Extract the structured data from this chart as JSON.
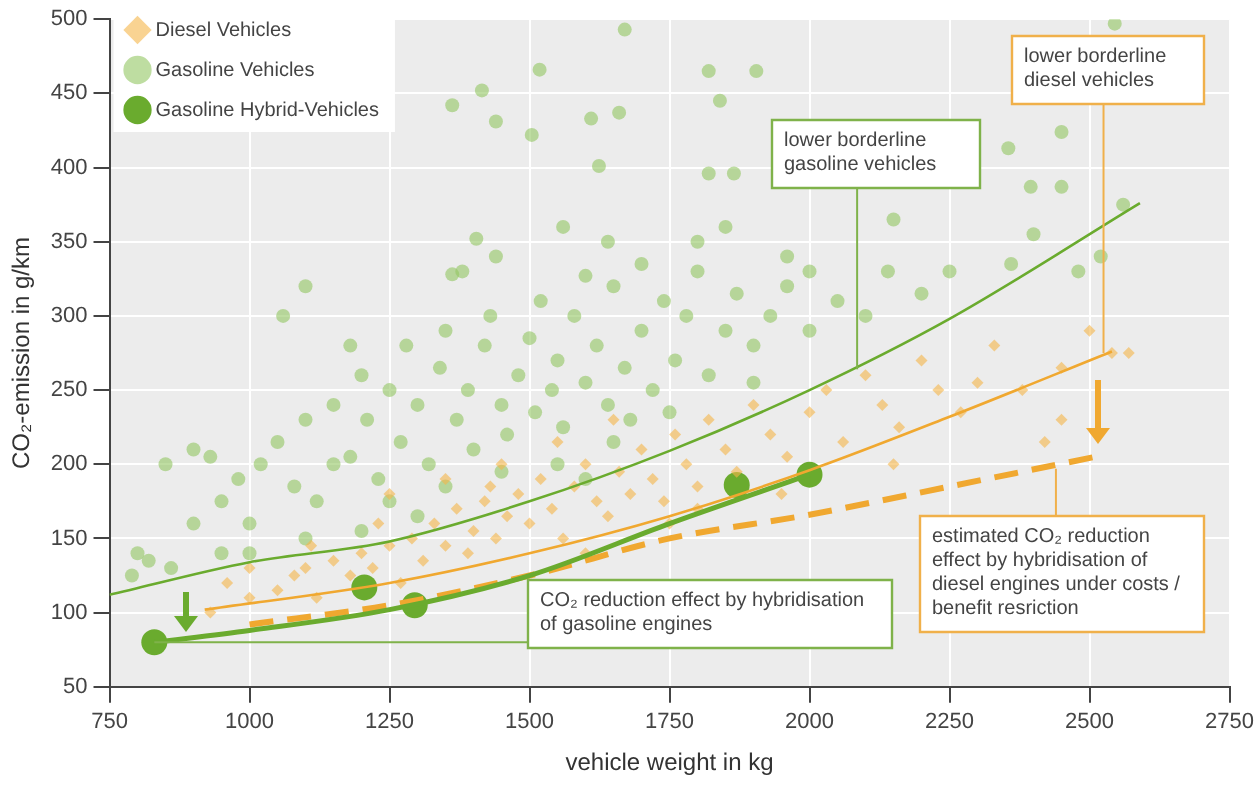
{
  "chart_data": {
    "type": "scatter",
    "xlabel": "vehicle weight in kg",
    "ylabel": "CO₂-emission in g/km",
    "xlim": [
      750,
      2750
    ],
    "xticks": [
      750,
      1000,
      1250,
      1500,
      1750,
      2000,
      2250,
      2500,
      2750
    ],
    "ylim": [
      50,
      500
    ],
    "yticks": [
      50,
      100,
      150,
      200,
      250,
      300,
      350,
      400,
      450,
      500
    ],
    "grid": true,
    "legend": "top left",
    "series": [
      {
        "name": "Diesel Vehicles",
        "type": "scatter",
        "marker": "diamond",
        "color": "#f5b54a",
        "x": [
          930,
          960,
          1000,
          1050,
          1080,
          1100,
          1120,
          1150,
          1180,
          1200,
          1220,
          1250,
          1270,
          1290,
          1310,
          1330,
          1350,
          1370,
          1390,
          1400,
          1420,
          1440,
          1460,
          1480,
          1500,
          1520,
          1540,
          1560,
          1580,
          1600,
          1620,
          1640,
          1660,
          1680,
          1700,
          1720,
          1740,
          1760,
          1780,
          1800,
          1820,
          1850,
          1870,
          1900,
          1930,
          1960,
          2000,
          2030,
          2060,
          2100,
          2130,
          2160,
          2200,
          2230,
          2270,
          2300,
          2330,
          2380,
          2420,
          2450,
          2500,
          2540,
          2570,
          1250,
          1350,
          1450,
          1550,
          1650,
          1000,
          1110,
          1230,
          1430,
          1750,
          1950,
          2150,
          2450,
          1600,
          1800
        ],
        "values": [
          100,
          120,
          110,
          115,
          125,
          130,
          110,
          135,
          125,
          140,
          130,
          145,
          120,
          150,
          135,
          160,
          145,
          170,
          140,
          155,
          175,
          150,
          165,
          180,
          160,
          190,
          170,
          150,
          185,
          200,
          175,
          165,
          195,
          180,
          210,
          190,
          175,
          220,
          200,
          185,
          230,
          210,
          195,
          240,
          220,
          205,
          235,
          250,
          215,
          260,
          240,
          225,
          270,
          250,
          235,
          255,
          280,
          250,
          215,
          265,
          290,
          275,
          275,
          180,
          190,
          200,
          215,
          230,
          130,
          145,
          160,
          185,
          160,
          180,
          200,
          230,
          140,
          170
        ]
      },
      {
        "name": "Gasoline Vehicles",
        "type": "scatter",
        "marker": "circle",
        "color": "#93c663",
        "x": [
          1362,
          1415,
          1440,
          1518,
          1504,
          1610,
          1660,
          1624,
          1670,
          2545,
          1820,
          1905,
          1840,
          1820,
          1865,
          2355,
          2450,
          2395,
          2450,
          1405,
          1362,
          1600,
          2150,
          1800,
          1960,
          2250,
          2360,
          2480,
          2520,
          1850,
          1700,
          1640,
          1100,
          1060,
          900,
          930,
          850,
          800,
          820,
          790,
          860,
          900,
          950,
          980,
          1000,
          1020,
          1050,
          1080,
          1100,
          1120,
          1150,
          1180,
          1200,
          1210,
          1230,
          1250,
          1270,
          1280,
          1300,
          1320,
          1340,
          1350,
          1370,
          1390,
          1400,
          1420,
          1430,
          1450,
          1460,
          1480,
          1500,
          1510,
          1520,
          1540,
          1550,
          1560,
          1580,
          1600,
          1620,
          1640,
          1650,
          1670,
          1700,
          1720,
          1740,
          1760,
          1780,
          1800,
          1820,
          1850,
          1870,
          1900,
          1930,
          1960,
          2000,
          2050,
          2100,
          2140,
          2200,
          2000,
          1900,
          1750,
          1150,
          1250,
          1350,
          1450,
          1550,
          1650,
          1000,
          1100,
          1200,
          1300,
          950,
          1600,
          2400,
          2560,
          1680,
          1440,
          1380,
          1180,
          1560
        ],
        "values": [
          442,
          452,
          431,
          466,
          422,
          433,
          437,
          401,
          493,
          497,
          465,
          465,
          445,
          396,
          396,
          413,
          424,
          387,
          387,
          352,
          328,
          327,
          365,
          350,
          340,
          330,
          335,
          330,
          340,
          360,
          335,
          350,
          320,
          300,
          210,
          205,
          200,
          140,
          135,
          125,
          130,
          160,
          175,
          190,
          160,
          200,
          215,
          185,
          230,
          175,
          240,
          205,
          260,
          230,
          190,
          250,
          215,
          280,
          240,
          200,
          265,
          290,
          230,
          250,
          210,
          280,
          300,
          240,
          220,
          260,
          285,
          235,
          310,
          250,
          270,
          225,
          300,
          255,
          280,
          240,
          320,
          265,
          290,
          250,
          310,
          270,
          300,
          330,
          260,
          290,
          315,
          280,
          300,
          320,
          290,
          310,
          300,
          330,
          315,
          330,
          255,
          235,
          200,
          175,
          185,
          195,
          200,
          215,
          140,
          150,
          155,
          165,
          140,
          190,
          355,
          375,
          230,
          340,
          330,
          280,
          360
        ]
      },
      {
        "name": "Gasoline Hybrid-Vehicles",
        "type": "scatter",
        "marker": "circle",
        "color": "#6aab2e",
        "x": [
          830,
          1205,
          1295,
          1870,
          2000
        ],
        "values": [
          80,
          117,
          105,
          186,
          193
        ]
      },
      {
        "type": "line",
        "marker": "none",
        "line_style": "solid",
        "color": "#6aab2e",
        "x": [
          750,
          1000,
          1250,
          1500,
          1750,
          2000,
          2250,
          2590
        ],
        "values": [
          112,
          134,
          148,
          175,
          209,
          250,
          298,
          376
        ]
      },
      {
        "type": "line",
        "marker": "none",
        "line_style": "solid",
        "color": "#f0a830",
        "x": [
          920,
          1250,
          1500,
          1750,
          2000,
          2250,
          2540
        ],
        "values": [
          102,
          120,
          140,
          165,
          196,
          232,
          276
        ]
      },
      {
        "type": "line",
        "marker": "none",
        "line_style": "solid",
        "color": "#6aab2e",
        "x": [
          830,
          1000,
          1250,
          1500,
          1750,
          2000
        ],
        "values": [
          80,
          88,
          102,
          125,
          160,
          193
        ]
      },
      {
        "type": "line",
        "marker": "none",
        "line_style": "dashed",
        "color": "#f0a830",
        "x": [
          1000,
          1250,
          1500,
          1750,
          2000,
          2250,
          2510
        ],
        "values": [
          92,
          105,
          125,
          150,
          166,
          185,
          205
        ]
      }
    ],
    "annotations": [
      {
        "text": "lower borderline gasoline vehicles",
        "x": 2085,
        "y": 264
      },
      {
        "text": "lower borderline diesel vehicles",
        "x": 2525,
        "y": 275
      },
      {
        "text": "CO₂ reduction effect by hybridisation of gasoline engines",
        "x": 830,
        "y": 80
      },
      {
        "text": "estimated CO₂ reduction effect by hybridisation of diesel engines under costs / benefit resriction",
        "x": 2440,
        "y": 197
      }
    ]
  }
}
